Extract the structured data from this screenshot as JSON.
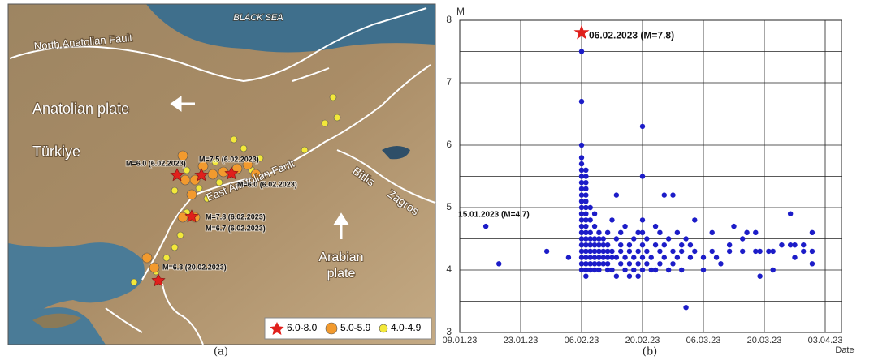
{
  "map": {
    "sea_label": "BLACK SEA",
    "naf_label": "North Anatolian Fault",
    "anatolian_label": "Anatolian plate",
    "country_label": "Türkiye",
    "eaf_label": "East Anatolian Fault",
    "bitlis_label": "Bitlis",
    "zagros_label": "Zagros",
    "arabian_label": [
      "Arabian",
      "plate"
    ],
    "event_labels": [
      "M=6.0 (6.02.2023)",
      "M=7.5 (6.02.2023)",
      "M=6.0 (6.02.2023)",
      "M=7.8 (6.02.2023)",
      "M=6.7 (6.02.2023)",
      "M=6.3 (20.02.2023)"
    ],
    "legend": [
      "6.0-8.0",
      "5.0-5.9",
      "4.0-4.9"
    ]
  },
  "captions": [
    "(a)",
    "(b)"
  ],
  "chart_data": {
    "type": "scatter",
    "y_label": "M",
    "x_label": "Date",
    "color": "#1c1cc8",
    "grid": true,
    "xlim": [
      "2023-01-09",
      "2023-04-03"
    ],
    "xticks": [
      {
        "value": "2023-01-09",
        "label": "09.01.23"
      },
      {
        "value": "2023-01-23",
        "label": "23.01.23"
      },
      {
        "value": "2023-02-06",
        "label": "06.02.23"
      },
      {
        "value": "2023-02-20",
        "label": "20.02.23"
      },
      {
        "value": "2023-03-06",
        "label": "06.03.23"
      },
      {
        "value": "2023-03-20",
        "label": "20.03.23"
      },
      {
        "value": "2023-04-03",
        "label": "03.04.23"
      }
    ],
    "ylim": [
      3,
      8
    ],
    "yticks": [
      3,
      4,
      5,
      6,
      7,
      8
    ],
    "yminorticks": [
      3.5,
      4.5,
      5.5,
      6.5,
      7.5
    ],
    "highlight": {
      "x": "2023-02-06",
      "y": 7.8,
      "label": "06.02.2023 (M=7.8)",
      "color": "#e0201c"
    },
    "annotation": {
      "x": "2023-01-15",
      "y": 4.7,
      "label": "15.01.2023 (M=4.7)"
    },
    "x": [
      "2023-01-15",
      "2023-01-18",
      "2023-01-29",
      "2023-02-03",
      "2023-02-06",
      "2023-02-06",
      "2023-02-06",
      "2023-02-06",
      "2023-02-06",
      "2023-02-06",
      "2023-02-06",
      "2023-02-06",
      "2023-02-06",
      "2023-02-06",
      "2023-02-06",
      "2023-02-06",
      "2023-02-06",
      "2023-02-06",
      "2023-02-06",
      "2023-02-06",
      "2023-02-06",
      "2023-02-06",
      "2023-02-06",
      "2023-02-06",
      "2023-02-06",
      "2023-02-06",
      "2023-02-07",
      "2023-02-07",
      "2023-02-07",
      "2023-02-07",
      "2023-02-07",
      "2023-02-07",
      "2023-02-07",
      "2023-02-07",
      "2023-02-07",
      "2023-02-07",
      "2023-02-07",
      "2023-02-07",
      "2023-02-07",
      "2023-02-07",
      "2023-02-07",
      "2023-02-07",
      "2023-02-07",
      "2023-02-07",
      "2023-02-08",
      "2023-02-08",
      "2023-02-08",
      "2023-02-08",
      "2023-02-08",
      "2023-02-08",
      "2023-02-08",
      "2023-02-08",
      "2023-02-08",
      "2023-02-09",
      "2023-02-09",
      "2023-02-09",
      "2023-02-09",
      "2023-02-09",
      "2023-02-09",
      "2023-02-09",
      "2023-02-09",
      "2023-02-10",
      "2023-02-10",
      "2023-02-10",
      "2023-02-10",
      "2023-02-10",
      "2023-02-10",
      "2023-02-10",
      "2023-02-11",
      "2023-02-11",
      "2023-02-11",
      "2023-02-11",
      "2023-02-11",
      "2023-02-12",
      "2023-02-12",
      "2023-02-12",
      "2023-02-12",
      "2023-02-12",
      "2023-02-12",
      "2023-02-13",
      "2023-02-13",
      "2023-02-13",
      "2023-02-13",
      "2023-02-14",
      "2023-02-14",
      "2023-02-14",
      "2023-02-14",
      "2023-02-15",
      "2023-02-15",
      "2023-02-15",
      "2023-02-15",
      "2023-02-16",
      "2023-02-16",
      "2023-02-16",
      "2023-02-17",
      "2023-02-17",
      "2023-02-17",
      "2023-02-17",
      "2023-02-18",
      "2023-02-18",
      "2023-02-18",
      "2023-02-19",
      "2023-02-19",
      "2023-02-19",
      "2023-02-19",
      "2023-02-20",
      "2023-02-20",
      "2023-02-20",
      "2023-02-20",
      "2023-02-20",
      "2023-02-20",
      "2023-02-20",
      "2023-02-21",
      "2023-02-21",
      "2023-02-21",
      "2023-02-22",
      "2023-02-22",
      "2023-02-23",
      "2023-02-23",
      "2023-02-23",
      "2023-02-24",
      "2023-02-24",
      "2023-02-24",
      "2023-02-25",
      "2023-02-25",
      "2023-02-25",
      "2023-02-26",
      "2023-02-26",
      "2023-02-27",
      "2023-02-27",
      "2023-02-27",
      "2023-02-28",
      "2023-02-28",
      "2023-03-01",
      "2023-03-01",
      "2023-03-01",
      "2023-03-02",
      "2023-03-02",
      "2023-03-03",
      "2023-03-03",
      "2023-03-04",
      "2023-03-04",
      "2023-03-06",
      "2023-03-06",
      "2023-03-08",
      "2023-03-08",
      "2023-03-09",
      "2023-03-10",
      "2023-03-12",
      "2023-03-12",
      "2023-03-13",
      "2023-03-15",
      "2023-03-15",
      "2023-03-16",
      "2023-03-18",
      "2023-03-18",
      "2023-03-19",
      "2023-03-19",
      "2023-03-21",
      "2023-03-22",
      "2023-03-22",
      "2023-03-24",
      "2023-03-26",
      "2023-03-26",
      "2023-03-27",
      "2023-03-27",
      "2023-03-29",
      "2023-03-29",
      "2023-03-31",
      "2023-03-31",
      "2023-03-31"
    ],
    "values": [
      4.7,
      4.1,
      4.3,
      4.2,
      7.5,
      6.7,
      6.0,
      5.8,
      5.7,
      5.6,
      5.5,
      5.4,
      5.3,
      5.2,
      5.1,
      5.0,
      4.9,
      4.8,
      4.7,
      4.6,
      4.5,
      4.4,
      4.3,
      4.2,
      4.1,
      4.0,
      5.6,
      5.5,
      5.4,
      5.3,
      5.2,
      5.1,
      5.0,
      4.9,
      4.8,
      4.7,
      4.6,
      4.5,
      4.4,
      4.3,
      4.2,
      4.1,
      4.0,
      3.9,
      5.0,
      4.8,
      4.6,
      4.5,
      4.4,
      4.3,
      4.2,
      4.1,
      4.0,
      4.9,
      4.7,
      4.5,
      4.4,
      4.3,
      4.2,
      4.1,
      4.0,
      4.6,
      4.5,
      4.4,
      4.3,
      4.2,
      4.1,
      4.0,
      4.5,
      4.4,
      4.3,
      4.2,
      4.1,
      4.6,
      4.4,
      4.3,
      4.2,
      4.1,
      4.0,
      4.8,
      4.3,
      4.2,
      4.0,
      5.2,
      4.5,
      4.2,
      3.9,
      4.6,
      4.4,
      4.3,
      4.1,
      4.7,
      4.2,
      4.0,
      4.4,
      4.3,
      4.1,
      3.9,
      4.5,
      4.2,
      4.0,
      4.6,
      4.3,
      4.1,
      3.9,
      6.3,
      5.5,
      4.8,
      4.6,
      4.4,
      4.2,
      4.0,
      4.5,
      4.3,
      4.1,
      4.2,
      4.0,
      4.7,
      4.4,
      4.0,
      4.6,
      4.3,
      4.1,
      5.2,
      4.4,
      4.2,
      4.5,
      4.0,
      5.2,
      4.3,
      4.1,
      4.6,
      4.2,
      4.4,
      4.3,
      4.0,
      3.4,
      4.5,
      4.4,
      4.2,
      4.8,
      4.3,
      4.2,
      4.0,
      4.6,
      4.3,
      4.2,
      4.1,
      4.4,
      4.3,
      4.7,
      4.5,
      4.3,
      4.6,
      4.6,
      4.3,
      3.9,
      4.3,
      4.3,
      4.0,
      4.3,
      4.4,
      4.9,
      4.4,
      4.4,
      4.2,
      4.4,
      4.3,
      4.6,
      4.3,
      4.1
    ]
  }
}
